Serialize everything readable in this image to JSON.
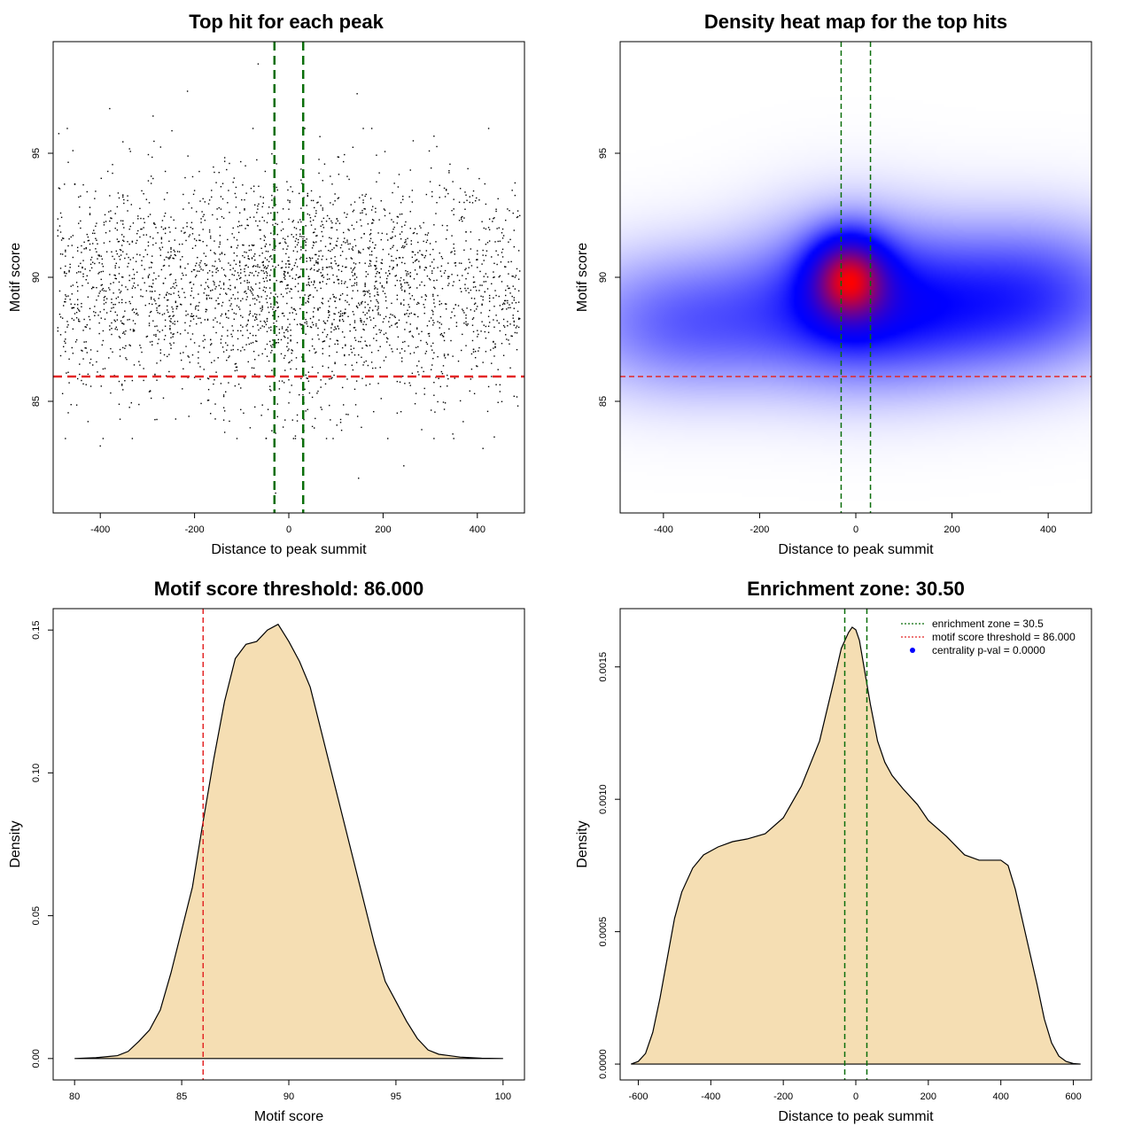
{
  "figure": {
    "panels_layout": "2x2",
    "colors": {
      "points": "#000000",
      "threshold_line": "#e32626",
      "enrichment_zone_line": "#0a6e0a",
      "density_fill": "#f5deb3",
      "density_stroke": "#000000",
      "heat_low": "#ffffff",
      "heat_mid": "#0000ff",
      "heat_high": "#ff0000",
      "legend_pval_marker": "#0000ff"
    }
  },
  "chart_data": [
    {
      "id": "scatter",
      "type": "scatter",
      "title": "Top hit for each peak",
      "xlabel": "Distance to peak summit",
      "ylabel": "Motif score",
      "xlim": [
        -500,
        500
      ],
      "ylim": [
        80.5,
        99.5
      ],
      "xticks": [
        -400,
        -200,
        0,
        200,
        400
      ],
      "xtick_labels": [
        "-400",
        "-200",
        "0",
        "200",
        "400"
      ],
      "yticks": [
        85,
        90,
        95
      ],
      "ytick_labels": [
        "85",
        "90",
        "95"
      ],
      "grid": false,
      "points_description": "about 3000 top-hit points spread over distance -490..490 with motif score mostly 84..94, denser near 0",
      "point_summary": {
        "n": 3000,
        "x_range": [
          -490,
          490
        ],
        "score_mean": 89.6,
        "score_sd": 2.3,
        "central_enrichment": 0.18
      },
      "outliers": [
        [
          -65,
          98.6
        ],
        [
          -215,
          97.5
        ],
        [
          145,
          97.4
        ],
        [
          -380,
          96.8
        ],
        [
          -288,
          96.5
        ],
        [
          -28,
          81.3
        ],
        [
          148,
          81.9
        ],
        [
          244,
          82.4
        ],
        [
          -400,
          83.2
        ],
        [
          412,
          83.1
        ]
      ],
      "vlines": [
        -30.5,
        30.5
      ],
      "hlines": [
        86.0
      ]
    },
    {
      "id": "heatmap",
      "type": "heatmap",
      "title": "Density heat map for the top hits",
      "xlabel": "Distance to peak summit",
      "ylabel": "Motif score",
      "xlim": [
        -490,
        490
      ],
      "ylim": [
        80.5,
        99.5
      ],
      "xticks": [
        -400,
        -200,
        0,
        200,
        400
      ],
      "xtick_labels": [
        "-400",
        "-200",
        "0",
        "200",
        "400"
      ],
      "yticks": [
        85,
        90,
        95
      ],
      "ytick_labels": [
        "85",
        "90",
        "95"
      ],
      "density_peak": [
        -15,
        90.0
      ],
      "density_description": "smoothed 2D density of motif score vs distance: broad band at score 87-91 across all distances, maximum (red) centred near distance -15, score 90",
      "components": [
        {
          "x": -15,
          "y": 90.0,
          "sx": 55,
          "sy": 1.2,
          "w": 1.0
        },
        {
          "x": -15,
          "y": 89.3,
          "sx": 140,
          "sy": 2.2,
          "w": 0.45
        },
        {
          "x": -350,
          "y": 88.2,
          "sx": 170,
          "sy": 1.9,
          "w": 0.42
        },
        {
          "x": 380,
          "y": 89.4,
          "sx": 160,
          "sy": 2.0,
          "w": 0.42
        },
        {
          "x": 140,
          "y": 88.5,
          "sx": 190,
          "sy": 2.0,
          "w": 0.38
        }
      ],
      "vlines": [
        -30.5,
        30.5
      ],
      "hlines": [
        86.0
      ]
    },
    {
      "id": "score_density",
      "type": "area",
      "title": "Motif score threshold: 86.000",
      "xlabel": "Motif score",
      "ylabel": "Density",
      "xlim": [
        79,
        101
      ],
      "ylim": [
        -0.0075,
        0.1575
      ],
      "xticks": [
        80,
        85,
        90,
        95,
        100
      ],
      "xtick_labels": [
        "80",
        "85",
        "90",
        "95",
        "100"
      ],
      "yticks": [
        0.0,
        0.05,
        0.1,
        0.15
      ],
      "ytick_labels": [
        "0.00",
        "0.05",
        "0.10",
        "0.15"
      ],
      "x": [
        80,
        81,
        82,
        82.5,
        83,
        83.5,
        84,
        84.5,
        85,
        85.5,
        86,
        86.5,
        87,
        87.5,
        88,
        88.5,
        89,
        89.5,
        90,
        90.5,
        91,
        91.5,
        92,
        92.5,
        93,
        93.5,
        94,
        94.5,
        95,
        95.5,
        96,
        96.5,
        97,
        98,
        99,
        100
      ],
      "y": [
        0.0,
        0.0003,
        0.001,
        0.0025,
        0.006,
        0.01,
        0.017,
        0.03,
        0.045,
        0.06,
        0.083,
        0.105,
        0.125,
        0.14,
        0.145,
        0.146,
        0.15,
        0.152,
        0.146,
        0.139,
        0.13,
        0.115,
        0.1,
        0.085,
        0.07,
        0.055,
        0.04,
        0.027,
        0.02,
        0.013,
        0.007,
        0.003,
        0.0015,
        0.0005,
        0.0001,
        0.0
      ],
      "vlines": [
        86.0
      ]
    },
    {
      "id": "distance_density",
      "type": "area",
      "title": "Enrichment zone: 30.50",
      "xlabel": "Distance to peak summit",
      "ylabel": "Density",
      "xlim": [
        -650,
        650
      ],
      "ylim": [
        -6e-05,
        0.00172
      ],
      "xticks": [
        -600,
        -400,
        -200,
        0,
        200,
        400,
        600
      ],
      "xtick_labels": [
        "-600",
        "-400",
        "-200",
        "0",
        "200",
        "400",
        "600"
      ],
      "yticks": [
        0.0,
        0.0005,
        0.001,
        0.0015
      ],
      "ytick_labels": [
        "0.0000",
        "0.0005",
        "0.0010",
        "0.0015"
      ],
      "x": [
        -620,
        -600,
        -580,
        -560,
        -540,
        -520,
        -500,
        -480,
        -450,
        -420,
        -380,
        -340,
        -300,
        -250,
        -200,
        -150,
        -100,
        -60,
        -40,
        -20,
        -10,
        0,
        10,
        20,
        40,
        60,
        80,
        100,
        130,
        170,
        200,
        250,
        300,
        340,
        370,
        400,
        420,
        440,
        460,
        480,
        500,
        520,
        540,
        560,
        580,
        600,
        620
      ],
      "y": [
        0.0,
        1e-05,
        4e-05,
        0.00012,
        0.00025,
        0.0004,
        0.00055,
        0.00065,
        0.00074,
        0.00079,
        0.00082,
        0.00084,
        0.00085,
        0.00087,
        0.00093,
        0.00105,
        0.00122,
        0.00145,
        0.00157,
        0.00163,
        0.00165,
        0.00164,
        0.0016,
        0.00152,
        0.00136,
        0.00122,
        0.00114,
        0.00109,
        0.00104,
        0.00098,
        0.00092,
        0.00086,
        0.00079,
        0.00077,
        0.00077,
        0.00077,
        0.00075,
        0.00066,
        0.00054,
        0.00042,
        0.0003,
        0.00017,
        8e-05,
        3e-05,
        1e-05,
        2e-06,
        0.0
      ],
      "vlines": [
        -30.5,
        30.5
      ],
      "legend": {
        "placement": "top-right",
        "entries": [
          {
            "label": "enrichment zone = 30.5",
            "style": "dotted-line",
            "color": "#0a6e0a"
          },
          {
            "label": "motif score threshold = 86.000",
            "style": "dotted-line",
            "color": "#e32626"
          },
          {
            "label": "centrality p-val = 0.0000",
            "style": "point",
            "color": "#0000ff"
          }
        ]
      }
    }
  ]
}
